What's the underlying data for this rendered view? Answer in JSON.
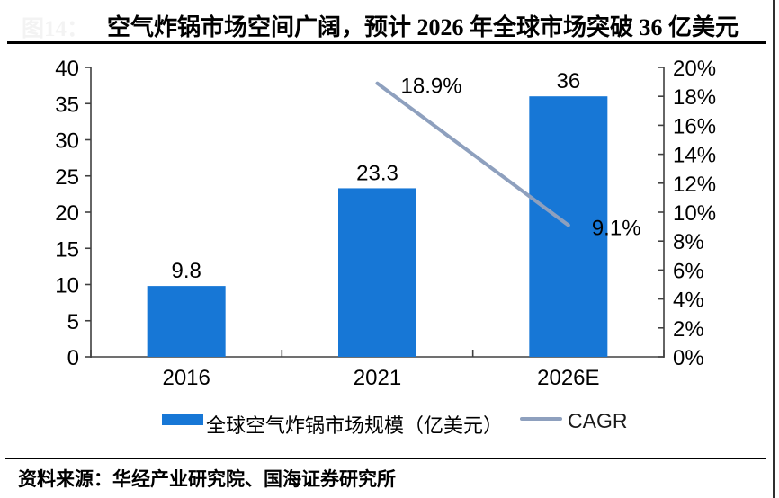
{
  "page": {
    "figure_label": "图14：",
    "title": "空气炸锅市场空间广阔，预计 2026 年全球市场突破 36 亿美元",
    "source": "资料来源：华经产业研究院、国海证券研究所"
  },
  "colors": {
    "bar": "#1777D6",
    "line": "#8EA0BE",
    "axis": "#404040",
    "text": "#000000"
  },
  "chart_data": {
    "type": "combo",
    "title": "空气炸锅市场空间广阔，预计 2026 年全球市场突破 36 亿美元",
    "categories": [
      "2016",
      "2021",
      "2026E"
    ],
    "series": [
      {
        "name": "全球空气炸锅市场规模（亿美元）",
        "type": "bar",
        "axis": "left",
        "color": "#1777D6",
        "values": [
          9.8,
          23.3,
          36
        ],
        "data_labels": [
          "9.8",
          "23.3",
          "36"
        ]
      },
      {
        "name": "CAGR",
        "type": "line",
        "axis": "right",
        "color": "#8EA0BE",
        "values": [
          null,
          18.9,
          9.1
        ],
        "data_labels": [
          null,
          "18.9%",
          "9.1%"
        ]
      }
    ],
    "left_axis": {
      "min": 0,
      "max": 40,
      "step": 5,
      "tick_labels": [
        "0",
        "5",
        "10",
        "15",
        "20",
        "25",
        "30",
        "35",
        "40"
      ]
    },
    "right_axis": {
      "min": 0,
      "max": 20,
      "step": 2,
      "tick_labels": [
        "0%",
        "2%",
        "4%",
        "6%",
        "8%",
        "10%",
        "12%",
        "14%",
        "16%",
        "18%",
        "20%"
      ]
    },
    "legend": {
      "position": "bottom",
      "entries": [
        "全球空气炸锅市场规模（亿美元）",
        "CAGR"
      ]
    },
    "grid": false
  }
}
